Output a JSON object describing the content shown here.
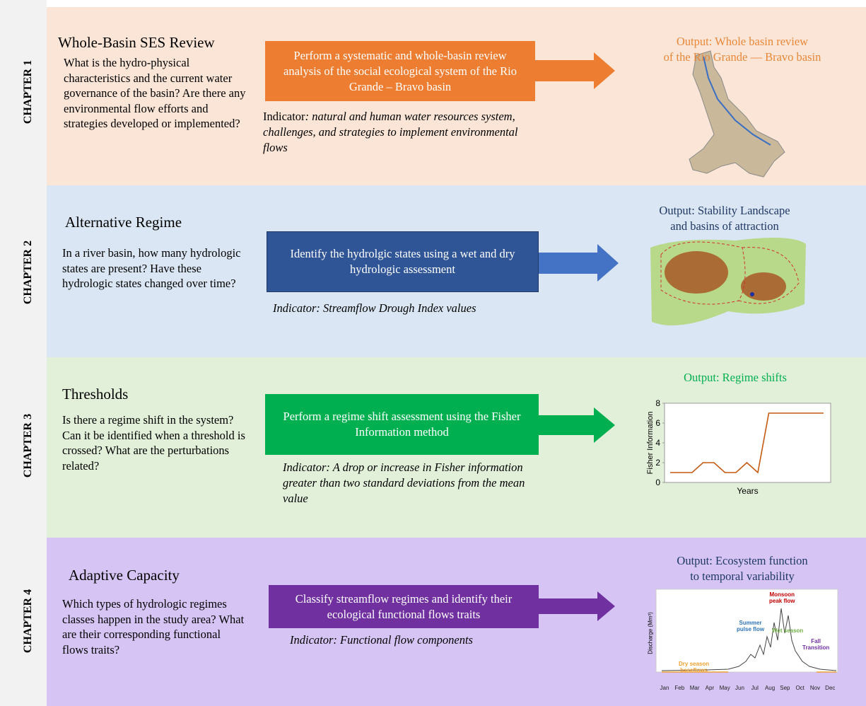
{
  "chapters": [
    {
      "label": "CHAPTER 1",
      "title": "Whole-Basin SES Review",
      "question": "What is the hydro-physical characteristics and the current water governance of the basin? Are there any environmental flow efforts and strategies developed or implemented?",
      "process": "Perform a systematic and whole-basin review analysis of the social ecological system of the Rio Grande – Bravo basin",
      "indicator_label": "Indicator",
      "indicator": "natural and human water resources system, challenges, and strategies to implement environmental flows",
      "output": "Output: Whole basin review\nof the  Rio Grande — Bravo basin"
    },
    {
      "label": "CHAPTER 2",
      "title": "Alternative Regime",
      "question": "In a river basin, how many hydrologic states are present? Have these hydrologic states changed over time?",
      "process": "Identify the hydrolgic states using a wet and dry hydrologic assessment",
      "indicator_label": "Indicator",
      "indicator": "Streamflow Drough Index values",
      "output": "Output: Stability Landscape\n and basins of attraction"
    },
    {
      "label": "CHAPTER 3",
      "title": "Thresholds",
      "question": "Is there  a regime shift in the system? Can it be identified when a threshold is crossed? What are the perturbations related?",
      "process": "Perform a regime shift assessment using the Fisher Information method",
      "indicator_label": "Indicator",
      "indicator": "A drop or increase in Fisher information greater than two standard deviations from the mean value",
      "output": "Output: Regime shifts",
      "chart": {
        "y_label": "Fisher Information",
        "x_label": "Years",
        "ylim": [
          0,
          8
        ],
        "yticks": [
          0,
          2,
          4,
          6,
          8
        ],
        "color": "#c55a11",
        "values": [
          1,
          1,
          1,
          2,
          2,
          1,
          1,
          2,
          1,
          7,
          7,
          7,
          7,
          7,
          7
        ]
      }
    },
    {
      "label": "CHAPTER 4",
      "title": "Adaptive Capacity",
      "question": "Which types of hydrologic regimes classes happen in the study area? What are their corresponding  functional flows traits?",
      "process": "Classify streamflow regimes and identify their ecological functional flows traits",
      "indicator_label": "Indicator",
      "indicator": "Functional flow components",
      "output": "Output: Ecosystem function\nto temporal variability",
      "figure": {
        "y_label": "Discharge (Mm³)",
        "months": [
          "Jan",
          "Feb",
          "Mar",
          "Apr",
          "May",
          "Jun",
          "Jul",
          "Aug",
          "Sep",
          "Oct",
          "Nov",
          "Dec"
        ],
        "annotations": [
          "Monsoon\npeak flow",
          "Summer\npulse flow",
          "Wet season",
          "Fall\nTransition",
          "Dry season\nbaseflows"
        ]
      }
    }
  ]
}
